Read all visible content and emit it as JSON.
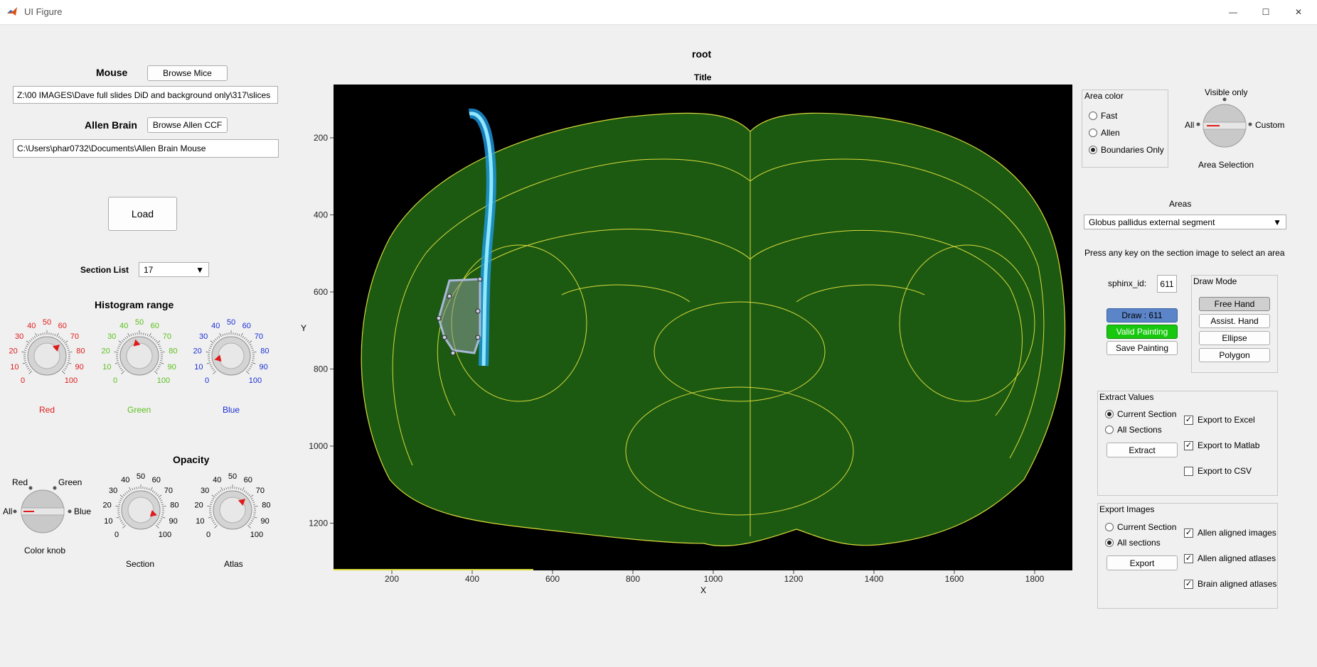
{
  "window": {
    "title": "UI Figure",
    "minimize": "—",
    "maximize": "☐",
    "close": "✕"
  },
  "left": {
    "mouse_label": "Mouse",
    "browse_mice": "Browse Mice",
    "mouse_path": "Z:\\00 IMAGES\\Dave full slides DiD and background only\\317\\slices",
    "allen_label": "Allen Brain",
    "browse_allen": "Browse Allen CCF",
    "allen_path": "C:\\Users\\phar0732\\Documents\\Allen Brain Mouse",
    "load": "Load",
    "section_list_label": "Section List",
    "section_list_value": "17",
    "histogram_title": "Histogram range",
    "knob_ticks": [
      "0",
      "10",
      "20",
      "30",
      "40",
      "50",
      "60",
      "70",
      "80",
      "90",
      "100"
    ],
    "red_label": "Red",
    "green_label": "Green",
    "blue_label": "Blue",
    "red_value": 68,
    "green_value": 45,
    "blue_value": 12,
    "opacity_title": "Opacity",
    "color_knob": {
      "label": "Color knob",
      "options": [
        "All",
        "Red",
        "Green",
        "Blue"
      ],
      "selected": "All"
    },
    "section_label": "Section",
    "section_value": 90,
    "atlas_label": "Atlas",
    "atlas_value": 68,
    "colors": {
      "red": "#e01b1b",
      "green": "#5bbf1c",
      "blue": "#1b2fd6"
    }
  },
  "plot": {
    "header": "root",
    "title": "Title",
    "xlabel": "X",
    "ylabel": "Y",
    "xticks": [
      "200",
      "400",
      "600",
      "800",
      "1000",
      "1200",
      "1400",
      "1600",
      "1800"
    ],
    "yticks": [
      "200",
      "400",
      "600",
      "800",
      "1000",
      "1200"
    ]
  },
  "right": {
    "area_color": {
      "title": "Area color",
      "options": [
        "Fast",
        "Allen",
        "Boundaries Only"
      ],
      "selected": "Boundaries Only"
    },
    "area_selection": {
      "label": "Area Selection",
      "top": "Visible only",
      "left": "All",
      "right": "Custom"
    },
    "areas_label": "Areas",
    "areas_value": "Globus pallidus external segment",
    "hint": "Press any key on the section image to select an area",
    "sphinx_label": "sphinx_id:",
    "sphinx_value": "611",
    "draw_btn": "Draw : 611",
    "valid_btn": "Valid Painting",
    "save_btn": "Save Painting",
    "draw_mode": {
      "title": "Draw Mode",
      "buttons": [
        "Free Hand",
        "Assist. Hand",
        "Ellipse",
        "Polygon"
      ]
    },
    "extract": {
      "title": "Extract Values",
      "radios": [
        "Current Section",
        "All Sections"
      ],
      "selected": "Current Section",
      "button": "Extract",
      "checks": [
        "Export to Excel",
        "Export to Matlab",
        "Export to CSV"
      ],
      "checked": [
        true,
        true,
        false
      ]
    },
    "export_images": {
      "title": "Export Images",
      "radios": [
        "Current Section",
        "All sections"
      ],
      "selected": "All sections",
      "button": "Export",
      "checks": [
        "Allen aligned images",
        "Allen aligned atlases",
        "Brain aligned atlases"
      ],
      "checked": [
        true,
        true,
        true
      ]
    }
  }
}
